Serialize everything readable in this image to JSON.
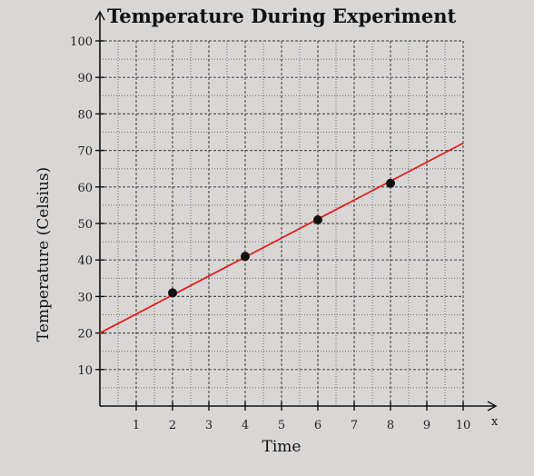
{
  "chart_data": {
    "type": "scatter",
    "title": "Temperature During Experiment",
    "xlabel": "Time",
    "ylabel": "Temperature (Celsius)",
    "x_axis_letter": "x",
    "xlim": [
      0,
      10
    ],
    "ylim": [
      0,
      100
    ],
    "x_ticks": [
      1,
      2,
      3,
      4,
      5,
      6,
      7,
      8,
      9,
      10
    ],
    "y_ticks": [
      10,
      20,
      30,
      40,
      50,
      60,
      70,
      80,
      90,
      100
    ],
    "grid": true,
    "series": [
      {
        "values": [
          {
            "x": 2,
            "y": 31
          },
          {
            "x": 4,
            "y": 41
          },
          {
            "x": 6,
            "y": 51
          },
          {
            "x": 8,
            "y": 61
          }
        ]
      }
    ],
    "trend_line": {
      "x": [
        0,
        10
      ],
      "y": [
        20,
        72
      ],
      "color": "#e0201c"
    },
    "colors": {
      "point": "#111111",
      "grid": "#555555",
      "axis": "#111111"
    }
  }
}
